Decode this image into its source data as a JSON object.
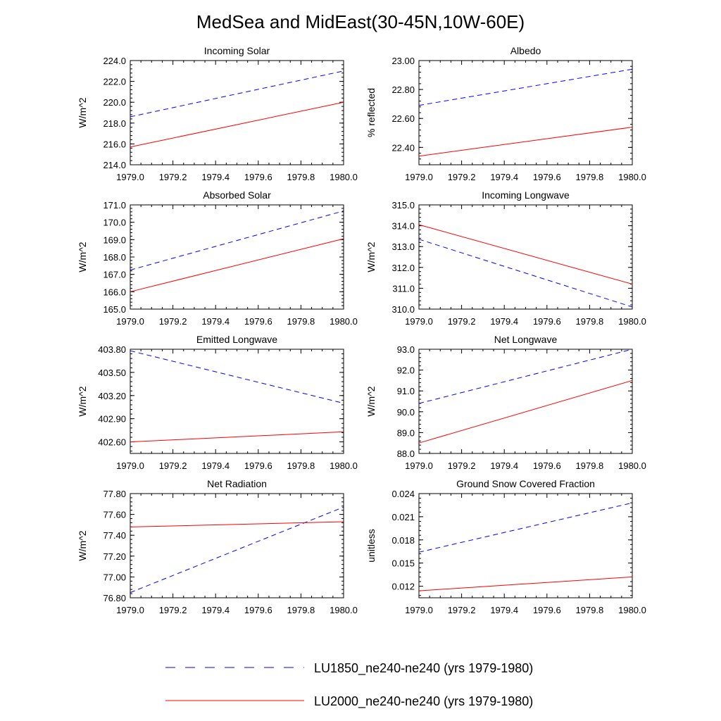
{
  "figure": {
    "title": "MedSea and MidEast(30-45N,10W-60E)",
    "legend": [
      {
        "label": "LU1850_ne240-ne240 (yrs 1979-1980)",
        "color": "#0000ff",
        "dash": "dashed"
      },
      {
        "label": "LU2000_ne240-ne240 (yrs 1979-1980)",
        "color": "#ff0000",
        "dash": "solid"
      }
    ]
  },
  "chart_data": [
    {
      "type": "line",
      "title": "Incoming Solar",
      "xlabel": "",
      "ylabel": "W/m^2",
      "xlim": [
        1979.0,
        1980.0
      ],
      "ylim": [
        214.0,
        224.0
      ],
      "xticks": [
        "1979.0",
        "1979.2",
        "1979.4",
        "1979.6",
        "1979.8",
        "1980.0"
      ],
      "yticks": [
        "214.0",
        "216.0",
        "218.0",
        "220.0",
        "222.0",
        "224.0"
      ],
      "series": [
        {
          "name": "LU1850_ne240-ne240 (yrs 1979-1980)",
          "x": [
            1979.0,
            1980.0
          ],
          "y": [
            218.6,
            223.0
          ]
        },
        {
          "name": "LU2000_ne240-ne240 (yrs 1979-1980)",
          "x": [
            1979.0,
            1980.0
          ],
          "y": [
            215.7,
            220.0
          ]
        }
      ]
    },
    {
      "type": "line",
      "title": "Albedo",
      "xlabel": "",
      "ylabel": "% reflected",
      "xlim": [
        1979.0,
        1980.0
      ],
      "ylim": [
        22.28,
        23.0
      ],
      "xticks": [
        "1979.0",
        "1979.2",
        "1979.4",
        "1979.6",
        "1979.8",
        "1980.0"
      ],
      "yticks": [
        "22.40",
        "22.60",
        "22.80",
        "23.00"
      ],
      "series": [
        {
          "name": "LU1850_ne240-ne240 (yrs 1979-1980)",
          "x": [
            1979.0,
            1980.0
          ],
          "y": [
            22.69,
            22.94
          ]
        },
        {
          "name": "LU2000_ne240-ne240 (yrs 1979-1980)",
          "x": [
            1979.0,
            1980.0
          ],
          "y": [
            22.34,
            22.54
          ]
        }
      ]
    },
    {
      "type": "line",
      "title": "Absorbed Solar",
      "xlabel": "",
      "ylabel": "W/m^2",
      "xlim": [
        1979.0,
        1980.0
      ],
      "ylim": [
        165.0,
        171.0
      ],
      "xticks": [
        "1979.0",
        "1979.2",
        "1979.4",
        "1979.6",
        "1979.8",
        "1980.0"
      ],
      "yticks": [
        "165.0",
        "166.0",
        "167.0",
        "168.0",
        "169.0",
        "170.0",
        "171.0"
      ],
      "series": [
        {
          "name": "LU1850_ne240-ne240 (yrs 1979-1980)",
          "x": [
            1979.0,
            1980.0
          ],
          "y": [
            167.25,
            170.65
          ]
        },
        {
          "name": "LU2000_ne240-ne240 (yrs 1979-1980)",
          "x": [
            1979.0,
            1980.0
          ],
          "y": [
            166.0,
            169.05
          ]
        }
      ]
    },
    {
      "type": "line",
      "title": "Incoming Longwave",
      "xlabel": "",
      "ylabel": "W/m^2",
      "xlim": [
        1979.0,
        1980.0
      ],
      "ylim": [
        310.0,
        315.0
      ],
      "xticks": [
        "1979.0",
        "1979.2",
        "1979.4",
        "1979.6",
        "1979.8",
        "1980.0"
      ],
      "yticks": [
        "310.0",
        "311.0",
        "312.0",
        "313.0",
        "314.0",
        "315.0"
      ],
      "series": [
        {
          "name": "LU1850_ne240-ne240 (yrs 1979-1980)",
          "x": [
            1979.0,
            1980.0
          ],
          "y": [
            313.35,
            310.1
          ]
        },
        {
          "name": "LU2000_ne240-ne240 (yrs 1979-1980)",
          "x": [
            1979.0,
            1980.0
          ],
          "y": [
            314.05,
            311.2
          ]
        }
      ]
    },
    {
      "type": "line",
      "title": "Emitted Longwave",
      "xlabel": "",
      "ylabel": "W/m^2",
      "xlim": [
        1979.0,
        1980.0
      ],
      "ylim": [
        402.45,
        403.8
      ],
      "xticks": [
        "1979.0",
        "1979.2",
        "1979.4",
        "1979.6",
        "1979.8",
        "1980.0"
      ],
      "yticks": [
        "402.60",
        "402.90",
        "403.20",
        "403.50",
        "403.80"
      ],
      "series": [
        {
          "name": "LU1850_ne240-ne240 (yrs 1979-1980)",
          "x": [
            1979.0,
            1980.0
          ],
          "y": [
            403.78,
            403.1
          ]
        },
        {
          "name": "LU2000_ne240-ne240 (yrs 1979-1980)",
          "x": [
            1979.0,
            1980.0
          ],
          "y": [
            402.6,
            402.73
          ]
        }
      ]
    },
    {
      "type": "line",
      "title": "Net Longwave",
      "xlabel": "",
      "ylabel": "W/m^2",
      "xlim": [
        1979.0,
        1980.0
      ],
      "ylim": [
        88.0,
        93.0
      ],
      "xticks": [
        "1979.0",
        "1979.2",
        "1979.4",
        "1979.6",
        "1979.8",
        "1980.0"
      ],
      "yticks": [
        "88.0",
        "89.0",
        "90.0",
        "91.0",
        "92.0",
        "93.0"
      ],
      "series": [
        {
          "name": "LU1850_ne240-ne240 (yrs 1979-1980)",
          "x": [
            1979.0,
            1980.0
          ],
          "y": [
            90.4,
            93.0
          ]
        },
        {
          "name": "LU2000_ne240-ne240 (yrs 1979-1980)",
          "x": [
            1979.0,
            1980.0
          ],
          "y": [
            88.5,
            91.5
          ]
        }
      ]
    },
    {
      "type": "line",
      "title": "Net Radiation",
      "xlabel": "",
      "ylabel": "W/m^2",
      "xlim": [
        1979.0,
        1980.0
      ],
      "ylim": [
        76.8,
        77.8
      ],
      "xticks": [
        "1979.0",
        "1979.2",
        "1979.4",
        "1979.6",
        "1979.8",
        "1980.0"
      ],
      "yticks": [
        "76.80",
        "77.00",
        "77.20",
        "77.40",
        "77.60",
        "77.80"
      ],
      "series": [
        {
          "name": "LU1850_ne240-ne240 (yrs 1979-1980)",
          "x": [
            1979.0,
            1980.0
          ],
          "y": [
            76.85,
            77.67
          ]
        },
        {
          "name": "LU2000_ne240-ne240 (yrs 1979-1980)",
          "x": [
            1979.0,
            1980.0
          ],
          "y": [
            77.48,
            77.53
          ]
        }
      ]
    },
    {
      "type": "line",
      "title": "Ground Snow Covered Fraction",
      "xlabel": "",
      "ylabel": "unitless",
      "xlim": [
        1979.0,
        1980.0
      ],
      "ylim": [
        0.0105,
        0.024
      ],
      "xticks": [
        "1979.0",
        "1979.2",
        "1979.4",
        "1979.6",
        "1979.8",
        "1980.0"
      ],
      "yticks": [
        "0.012",
        "0.015",
        "0.018",
        "0.021",
        "0.024"
      ],
      "series": [
        {
          "name": "LU1850_ne240-ne240 (yrs 1979-1980)",
          "x": [
            1979.0,
            1980.0
          ],
          "y": [
            0.0164,
            0.0228
          ]
        },
        {
          "name": "LU2000_ne240-ne240 (yrs 1979-1980)",
          "x": [
            1979.0,
            1980.0
          ],
          "y": [
            0.0114,
            0.0132
          ]
        }
      ]
    }
  ]
}
